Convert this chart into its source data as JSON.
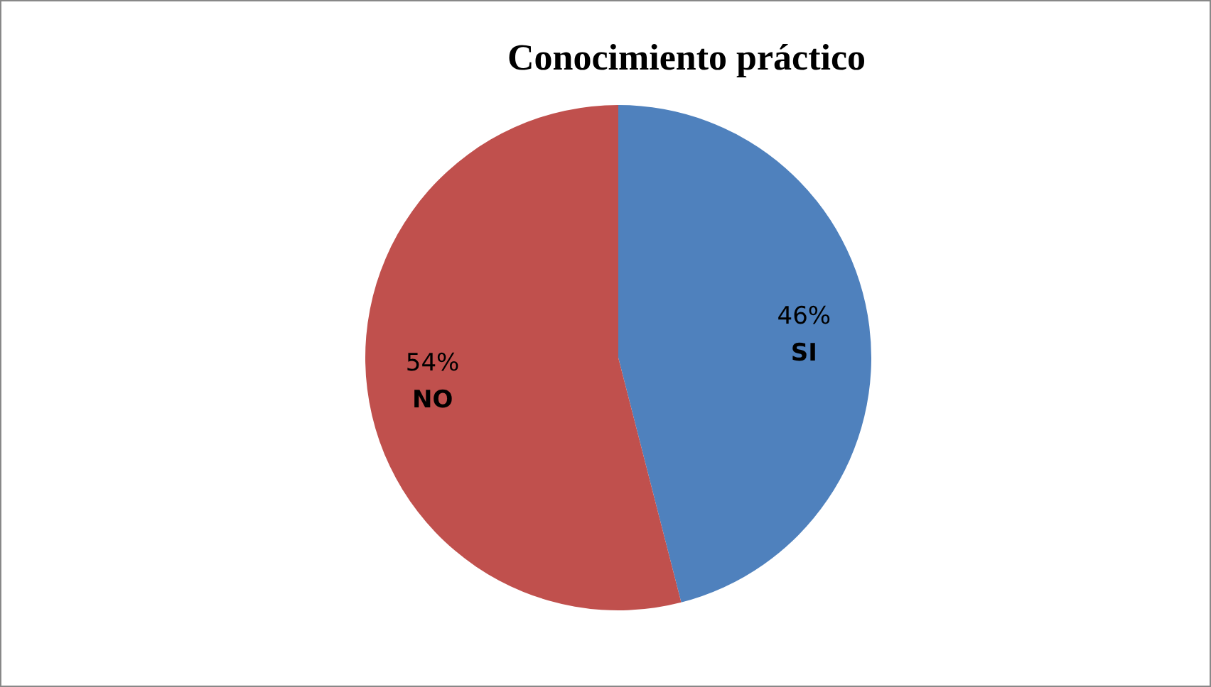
{
  "chart_data": {
    "type": "pie",
    "title": "Conocimiento práctico",
    "categories": [
      "SI",
      "NO"
    ],
    "values": [
      46,
      54
    ],
    "value_labels": [
      "46%",
      "54%"
    ],
    "colors": [
      "#4f81bd",
      "#c0504d"
    ],
    "legend": false
  }
}
